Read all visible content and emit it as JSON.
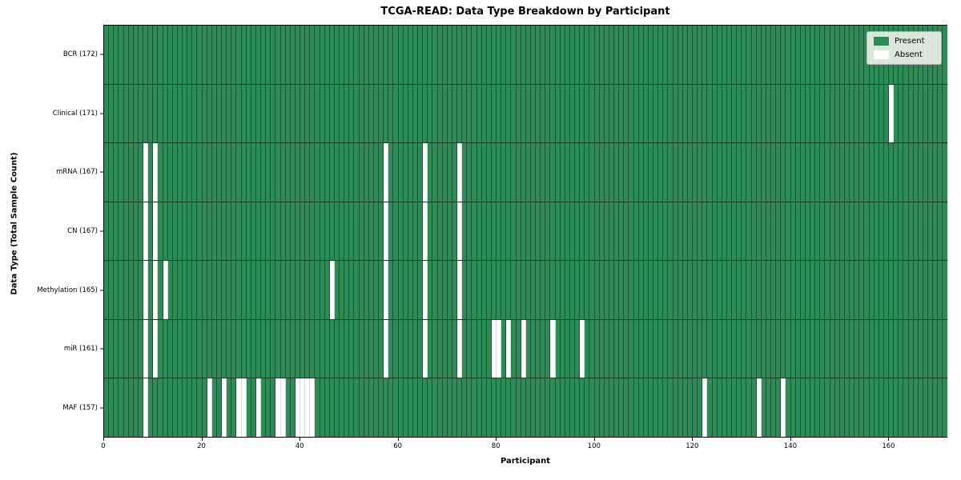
{
  "title": "TCGA-READ: Data Type Breakdown by Participant",
  "legend": {
    "present_label": "Present",
    "absent_label": "Absent"
  },
  "colors": {
    "present": "#2e8b57",
    "absent": "#ffffff"
  },
  "chart_data": {
    "type": "heatmap",
    "title": "TCGA-READ: Data Type Breakdown by Participant",
    "xlabel": "Participant",
    "ylabel": "Data Type (Total Sample Count)",
    "legend_entries": [
      {
        "label": "Present",
        "color": "#2e8b57"
      },
      {
        "label": "Absent",
        "color": "#ffffff"
      }
    ],
    "legend_position": "upper right",
    "n_participants": 172,
    "x_range": [
      0,
      172
    ],
    "x_ticks": [
      0,
      20,
      40,
      60,
      80,
      100,
      120,
      140,
      160
    ],
    "cell_values": "present=1, absent=0",
    "rows": [
      {
        "label": "BCR (172)",
        "data_type": "BCR",
        "total_sample_count": 172,
        "absent_participants": []
      },
      {
        "label": "Clinical (171)",
        "data_type": "Clinical",
        "total_sample_count": 171,
        "absent_participants": [
          160
        ]
      },
      {
        "label": "mRNA (167)",
        "data_type": "mRNA",
        "total_sample_count": 167,
        "absent_participants": [
          8,
          10,
          57,
          65,
          72
        ]
      },
      {
        "label": "CN (167)",
        "data_type": "CN",
        "total_sample_count": 167,
        "absent_participants": [
          8,
          10,
          57,
          65,
          72
        ]
      },
      {
        "label": "Methylation (165)",
        "data_type": "Methylation",
        "total_sample_count": 165,
        "absent_participants": [
          8,
          10,
          12,
          46,
          57,
          65,
          72
        ]
      },
      {
        "label": "miR (161)",
        "data_type": "miR",
        "total_sample_count": 161,
        "absent_participants": [
          8,
          10,
          57,
          65,
          72,
          79,
          80,
          82,
          85,
          91,
          97
        ]
      },
      {
        "label": "MAF (157)",
        "data_type": "MAF",
        "total_sample_count": 157,
        "absent_participants": [
          8,
          21,
          24,
          27,
          28,
          31,
          35,
          36,
          39,
          40,
          41,
          42,
          122,
          133,
          138
        ]
      }
    ]
  }
}
